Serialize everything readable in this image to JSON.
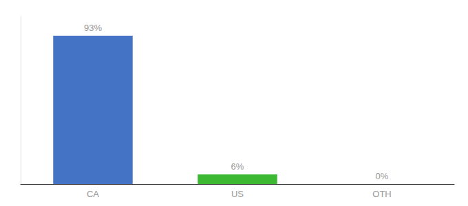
{
  "chart_data": {
    "type": "bar",
    "categories": [
      "CA",
      "US",
      "OTH"
    ],
    "values": [
      93,
      6,
      0
    ],
    "value_labels": [
      "93%",
      "6%",
      "0%"
    ],
    "data_labels": true,
    "colors": [
      "#4472c4",
      "#3cb832",
      "#4472c4"
    ],
    "ylim": [
      0,
      105
    ],
    "tick_labels": "x",
    "grid": false
  }
}
